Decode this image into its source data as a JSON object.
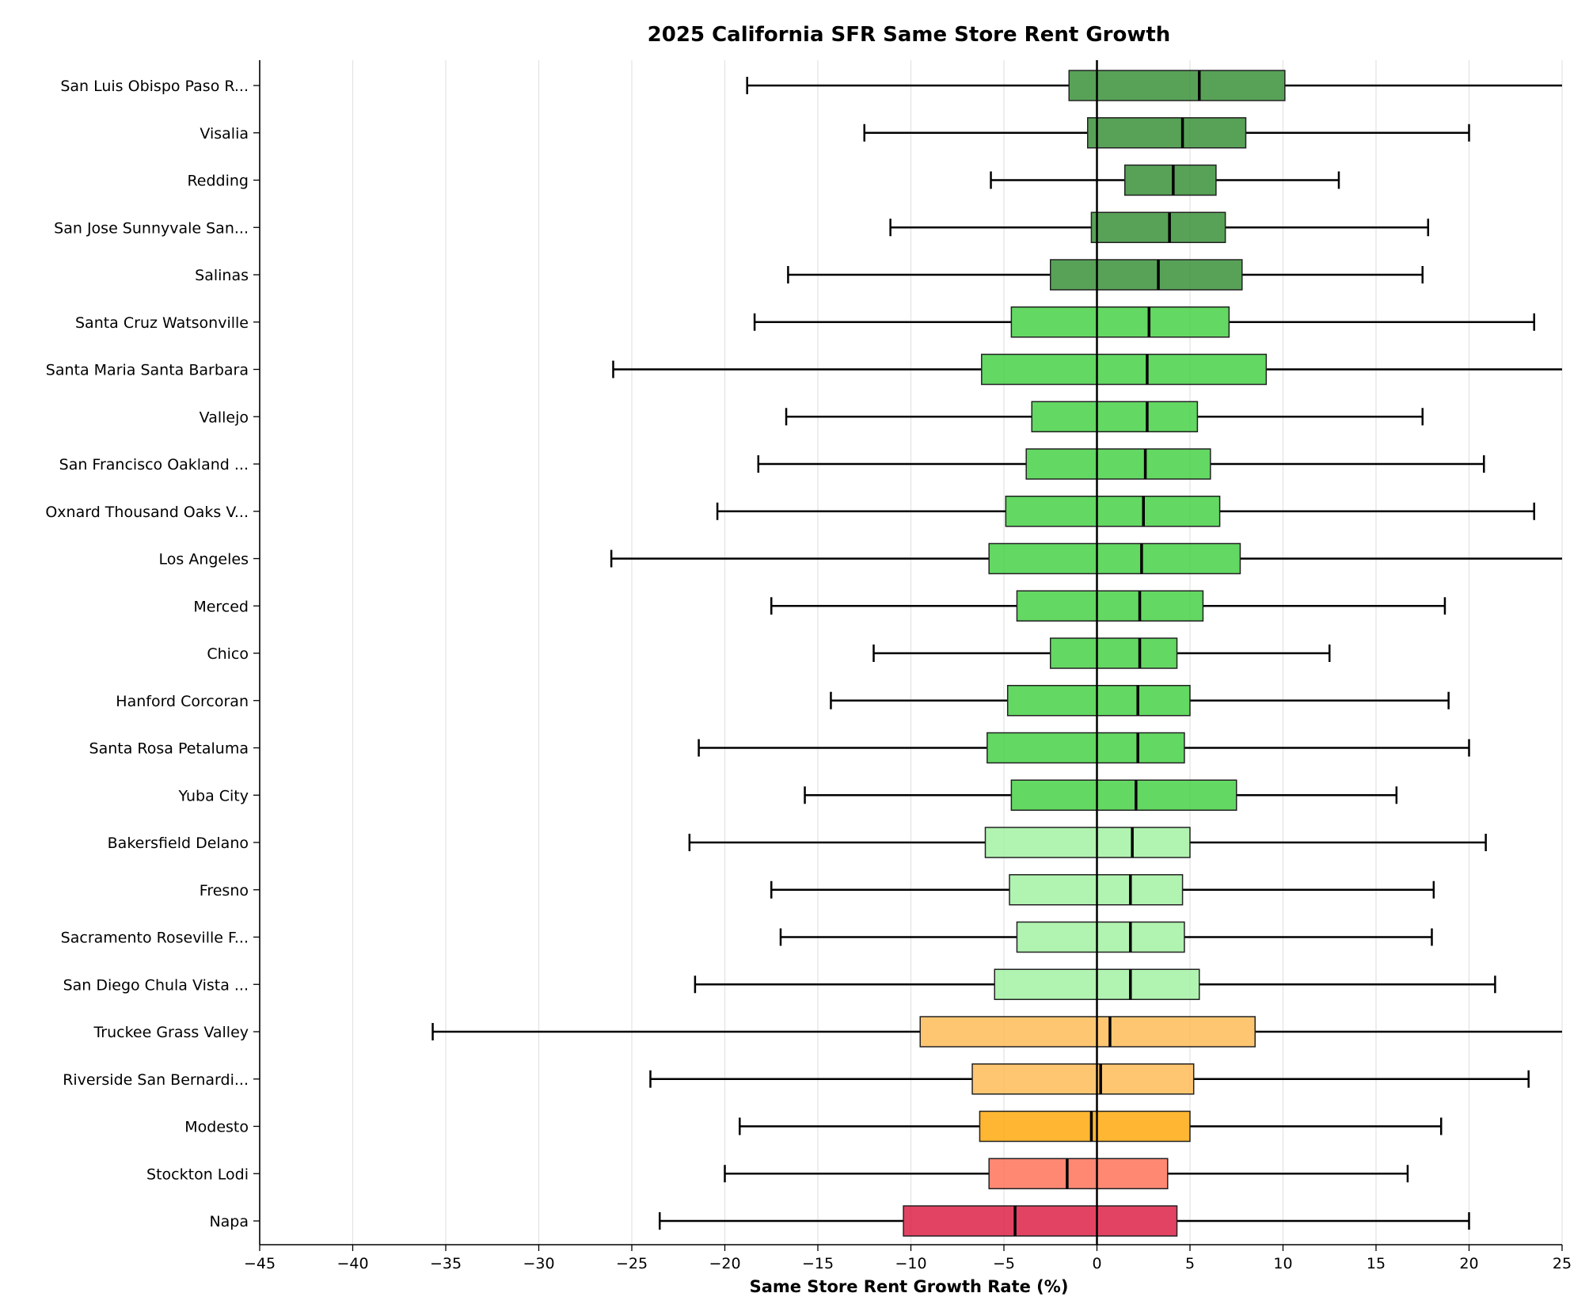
{
  "chart_data": {
    "type": "boxplot-horizontal",
    "title": "2025 California SFR Same Store Rent Growth",
    "xlabel": "Same Store Rent Growth Rate (%)",
    "ylabel": "",
    "xlim": [
      -45,
      25
    ],
    "xticks": [
      -45,
      -40,
      -35,
      -30,
      -25,
      -20,
      -15,
      -10,
      -5,
      0,
      5,
      10,
      15,
      20,
      25
    ],
    "xtick_labels": [
      "−45",
      "−40",
      "−35",
      "−30",
      "−25",
      "−20",
      "−15",
      "−10",
      "−5",
      "0",
      "5",
      "10",
      "15",
      "20",
      "25"
    ],
    "grid": "vertical",
    "reference_line": 0,
    "series": [
      {
        "name": "San Luis Obispo Paso R...",
        "whisker_low": -18.8,
        "q1": -1.5,
        "median": 5.5,
        "q3": 10.1,
        "whisker_high": 25.0,
        "color": "#2e8b2e"
      },
      {
        "name": "Visalia",
        "whisker_low": -12.5,
        "q1": -0.5,
        "median": 4.6,
        "q3": 8.0,
        "whisker_high": 20.0,
        "color": "#2e8b2e"
      },
      {
        "name": "Redding",
        "whisker_low": -5.7,
        "q1": 1.5,
        "median": 4.1,
        "q3": 6.4,
        "whisker_high": 13.0,
        "color": "#2e8b2e"
      },
      {
        "name": "San Jose Sunnyvale San...",
        "whisker_low": -11.1,
        "q1": -0.3,
        "median": 3.9,
        "q3": 6.9,
        "whisker_high": 17.8,
        "color": "#2e8b2e"
      },
      {
        "name": "Salinas",
        "whisker_low": -16.6,
        "q1": -2.5,
        "median": 3.3,
        "q3": 7.8,
        "whisker_high": 17.5,
        "color": "#2e8b2e"
      },
      {
        "name": "Santa Cruz Watsonville",
        "whisker_low": -18.4,
        "q1": -4.6,
        "median": 2.8,
        "q3": 7.1,
        "whisker_high": 23.5,
        "color": "#3cce3c"
      },
      {
        "name": "Santa Maria Santa Barbara",
        "whisker_low": -26.0,
        "q1": -6.2,
        "median": 2.7,
        "q3": 9.1,
        "whisker_high": 25.0,
        "color": "#3cce3c"
      },
      {
        "name": "Vallejo",
        "whisker_low": -16.7,
        "q1": -3.5,
        "median": 2.7,
        "q3": 5.4,
        "whisker_high": 17.5,
        "color": "#3cce3c"
      },
      {
        "name": "San Francisco Oakland ...",
        "whisker_low": -18.2,
        "q1": -3.8,
        "median": 2.6,
        "q3": 6.1,
        "whisker_high": 20.8,
        "color": "#3cce3c"
      },
      {
        "name": "Oxnard Thousand Oaks V...",
        "whisker_low": -20.4,
        "q1": -4.9,
        "median": 2.5,
        "q3": 6.6,
        "whisker_high": 23.5,
        "color": "#3cce3c"
      },
      {
        "name": "Los Angeles",
        "whisker_low": -26.1,
        "q1": -5.8,
        "median": 2.4,
        "q3": 7.7,
        "whisker_high": 25.0,
        "color": "#3cce3c"
      },
      {
        "name": "Merced",
        "whisker_low": -17.5,
        "q1": -4.3,
        "median": 2.3,
        "q3": 5.7,
        "whisker_high": 18.7,
        "color": "#3cce3c"
      },
      {
        "name": "Chico",
        "whisker_low": -12.0,
        "q1": -2.5,
        "median": 2.3,
        "q3": 4.3,
        "whisker_high": 12.5,
        "color": "#3cce3c"
      },
      {
        "name": "Hanford Corcoran",
        "whisker_low": -14.3,
        "q1": -4.8,
        "median": 2.2,
        "q3": 5.0,
        "whisker_high": 18.9,
        "color": "#3cce3c"
      },
      {
        "name": "Santa Rosa Petaluma",
        "whisker_low": -21.4,
        "q1": -5.9,
        "median": 2.2,
        "q3": 4.7,
        "whisker_high": 20.0,
        "color": "#3cce3c"
      },
      {
        "name": "Yuba City",
        "whisker_low": -15.7,
        "q1": -4.6,
        "median": 2.1,
        "q3": 7.5,
        "whisker_high": 16.1,
        "color": "#3cce3c"
      },
      {
        "name": "Bakersfield Delano",
        "whisker_low": -21.9,
        "q1": -6.0,
        "median": 1.9,
        "q3": 5.0,
        "whisker_high": 20.9,
        "color": "#9ef09e"
      },
      {
        "name": "Fresno",
        "whisker_low": -17.5,
        "q1": -4.7,
        "median": 1.8,
        "q3": 4.6,
        "whisker_high": 18.1,
        "color": "#9ef09e"
      },
      {
        "name": "Sacramento Roseville F...",
        "whisker_low": -17.0,
        "q1": -4.3,
        "median": 1.8,
        "q3": 4.7,
        "whisker_high": 18.0,
        "color": "#9ef09e"
      },
      {
        "name": "San Diego Chula Vista ...",
        "whisker_low": -21.6,
        "q1": -5.5,
        "median": 1.8,
        "q3": 5.5,
        "whisker_high": 21.4,
        "color": "#9ef09e"
      },
      {
        "name": "Truckee Grass Valley",
        "whisker_low": -35.7,
        "q1": -9.5,
        "median": 0.7,
        "q3": 8.5,
        "whisker_high": 25.0,
        "color": "#ffb84d"
      },
      {
        "name": "Riverside San Bernardi...",
        "whisker_low": -24.0,
        "q1": -6.7,
        "median": 0.2,
        "q3": 5.2,
        "whisker_high": 23.2,
        "color": "#ffb84d"
      },
      {
        "name": "Modesto",
        "whisker_low": -19.2,
        "q1": -6.3,
        "median": -0.3,
        "q3": 5.0,
        "whisker_high": 18.5,
        "color": "#ffa500"
      },
      {
        "name": "Stockton Lodi",
        "whisker_low": -20.0,
        "q1": -5.8,
        "median": -1.6,
        "q3": 3.8,
        "whisker_high": 16.7,
        "color": "#ff6a50"
      },
      {
        "name": "Napa",
        "whisker_low": -23.5,
        "q1": -10.4,
        "median": -4.4,
        "q3": 4.3,
        "whisker_high": 20.0,
        "color": "#dc143c"
      }
    ]
  }
}
